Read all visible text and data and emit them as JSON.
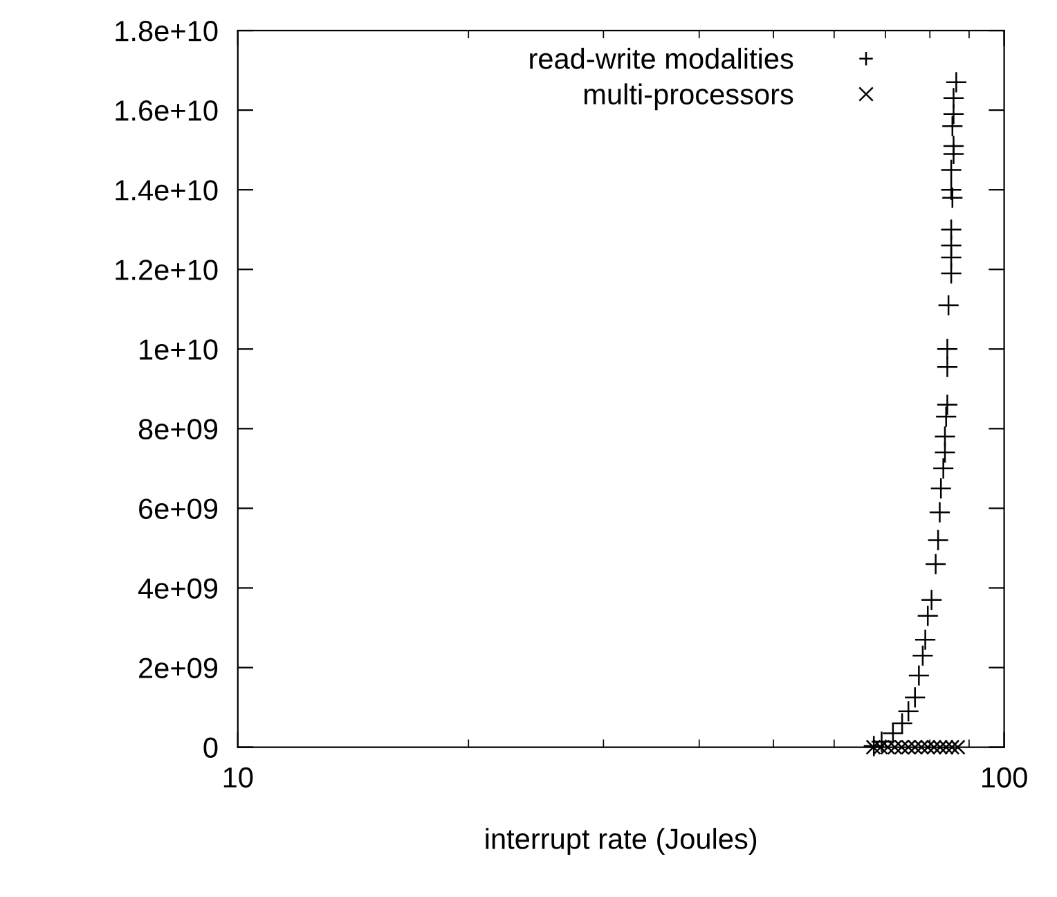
{
  "chart_data": {
    "type": "scatter",
    "xlabel": "interrupt rate (Joules)",
    "log": "x",
    "xlim": [
      10,
      100
    ],
    "xticks": [
      10,
      100
    ],
    "ylim": [
      0,
      18000000000
    ],
    "yticks": [
      0,
      {
        "value": 2000000000,
        "label": "2e+09"
      },
      {
        "value": 4000000000,
        "label": "4e+09"
      },
      {
        "value": 6000000000,
        "label": "6e+09"
      },
      {
        "value": 8000000000,
        "label": "8e+09"
      },
      {
        "value": 10000000000,
        "label": "1e+10"
      },
      {
        "value": 12000000000,
        "label": "1.2e+10"
      },
      {
        "value": 14000000000,
        "label": "1.4e+10"
      },
      {
        "value": 16000000000,
        "label": "1.6e+10"
      },
      {
        "value": 18000000000,
        "label": "1.8e+10"
      }
    ],
    "grid": false,
    "legend": "top right",
    "series": [
      {
        "name": "read-write modalities",
        "color": "#000000",
        "marker": "plus",
        "x": [
          86.6,
          85.9,
          85.9,
          85.6,
          85.9,
          85.9,
          85.3,
          85.3,
          85.6,
          85.3,
          85.3,
          85.3,
          85.3,
          84.6,
          84.3,
          84.3,
          84.3,
          84.0,
          83.7,
          83.7,
          83.3,
          82.7,
          82.4,
          82.0,
          81.4,
          80.4,
          79.5,
          78.9,
          78.3,
          77.4,
          76.5,
          75.0,
          73.6,
          71.6,
          69.2,
          67.6
        ],
        "values": [
          16700000000,
          16300000000,
          15900000000,
          15600000000,
          15100000000,
          14900000000,
          14500000000,
          14000000000,
          13800000000,
          13000000000,
          12600000000,
          12300000000,
          11900000000,
          11100000000,
          10000000000,
          9550000000,
          8600000000,
          8300000000,
          7800000000,
          7400000000,
          7000000000,
          6500000000,
          5900000000,
          5200000000,
          4600000000,
          3700000000,
          3300000000,
          2700000000,
          2300000000,
          1800000000,
          1250000000,
          900000000,
          600000000,
          350000000,
          140000000,
          30000000
        ]
      },
      {
        "name": "multi-processors",
        "color": "#000000",
        "marker": "cross",
        "x": [
          67.5,
          69,
          70.5,
          72,
          73.5,
          75,
          76.5,
          78,
          79.5,
          81,
          82.5,
          84,
          85.5,
          87
        ],
        "values": [
          0,
          0,
          0,
          0,
          0,
          0,
          0,
          0,
          0,
          0,
          0,
          0,
          0,
          0
        ]
      }
    ]
  }
}
